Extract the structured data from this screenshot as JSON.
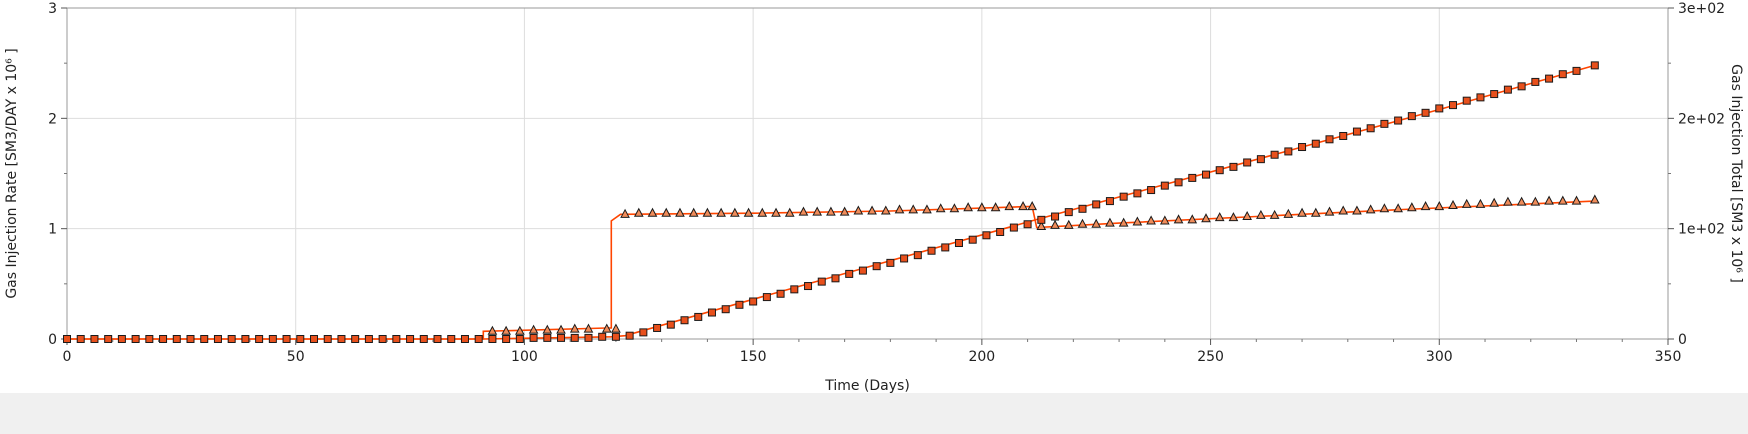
{
  "chart_data": {
    "type": "line",
    "title": "",
    "xlabel": "Time (Days)",
    "ylabel_left": "Gas Injection Rate [SM3/DAY x 10⁶ ]",
    "ylabel_right": "Gas Injection Total [SM3 x 10⁶ ]",
    "xlim": [
      0,
      350
    ],
    "ylim_left": [
      0,
      3
    ],
    "ylim_right": [
      0,
      300
    ],
    "x_ticks": [
      0,
      50,
      100,
      150,
      200,
      250,
      300,
      350
    ],
    "x_tick_labels": [
      "0",
      "50",
      "100",
      "150",
      "200",
      "250",
      "300",
      "350"
    ],
    "y_left_ticks": [
      0,
      1,
      2,
      3
    ],
    "y_left_tick_labels": [
      "0",
      "1",
      "2",
      "3"
    ],
    "y_right_ticks": [
      0,
      100,
      200,
      300
    ],
    "y_right_tick_labels": [
      "0",
      "1e+02",
      "2e+02",
      "3e+02"
    ],
    "grid": true,
    "colors": {
      "line": "#ff4500",
      "marker_square": "#e8501c",
      "marker_triangle": "#f08c5a",
      "marker_edge": "#1a1a1a",
      "grid": "#dddddd"
    },
    "series": [
      {
        "axis": "left",
        "marker": "triangle",
        "line": [
          [
            0,
            0
          ],
          [
            91,
            0
          ],
          [
            91,
            0.07
          ],
          [
            118,
            0.1
          ],
          [
            119,
            0.1
          ],
          [
            119,
            1.07
          ],
          [
            121,
            1.13
          ],
          [
            150,
            1.14
          ],
          [
            180,
            1.16
          ],
          [
            210,
            1.2
          ],
          [
            211,
            1.2
          ],
          [
            212,
            1.01
          ],
          [
            230,
            1.05
          ],
          [
            260,
            1.11
          ],
          [
            290,
            1.17
          ],
          [
            334,
            1.25
          ]
        ],
        "points": [
          [
            93,
            0.07
          ],
          [
            96,
            0.07
          ],
          [
            99,
            0.07
          ],
          [
            102,
            0.08
          ],
          [
            105,
            0.08
          ],
          [
            108,
            0.08
          ],
          [
            111,
            0.09
          ],
          [
            114,
            0.09
          ],
          [
            118,
            0.09
          ],
          [
            120,
            0.09
          ],
          [
            122,
            1.13
          ],
          [
            125,
            1.14
          ],
          [
            128,
            1.14
          ],
          [
            131,
            1.14
          ],
          [
            134,
            1.14
          ],
          [
            137,
            1.14
          ],
          [
            140,
            1.14
          ],
          [
            143,
            1.14
          ],
          [
            146,
            1.14
          ],
          [
            149,
            1.14
          ],
          [
            152,
            1.14
          ],
          [
            155,
            1.14
          ],
          [
            158,
            1.14
          ],
          [
            161,
            1.15
          ],
          [
            164,
            1.15
          ],
          [
            167,
            1.15
          ],
          [
            170,
            1.15
          ],
          [
            173,
            1.16
          ],
          [
            176,
            1.16
          ],
          [
            179,
            1.16
          ],
          [
            182,
            1.17
          ],
          [
            185,
            1.17
          ],
          [
            188,
            1.17
          ],
          [
            191,
            1.18
          ],
          [
            194,
            1.18
          ],
          [
            197,
            1.19
          ],
          [
            200,
            1.19
          ],
          [
            203,
            1.19
          ],
          [
            206,
            1.2
          ],
          [
            209,
            1.2
          ],
          [
            211,
            1.2
          ],
          [
            213,
            1.02
          ],
          [
            216,
            1.03
          ],
          [
            219,
            1.03
          ],
          [
            222,
            1.04
          ],
          [
            225,
            1.04
          ],
          [
            228,
            1.05
          ],
          [
            231,
            1.05
          ],
          [
            234,
            1.06
          ],
          [
            237,
            1.07
          ],
          [
            240,
            1.07
          ],
          [
            243,
            1.08
          ],
          [
            246,
            1.08
          ],
          [
            249,
            1.09
          ],
          [
            252,
            1.1
          ],
          [
            255,
            1.1
          ],
          [
            258,
            1.11
          ],
          [
            261,
            1.12
          ],
          [
            264,
            1.12
          ],
          [
            267,
            1.13
          ],
          [
            270,
            1.14
          ],
          [
            273,
            1.14
          ],
          [
            276,
            1.15
          ],
          [
            279,
            1.16
          ],
          [
            282,
            1.16
          ],
          [
            285,
            1.17
          ],
          [
            288,
            1.18
          ],
          [
            291,
            1.18
          ],
          [
            294,
            1.19
          ],
          [
            297,
            1.2
          ],
          [
            300,
            1.2
          ],
          [
            303,
            1.21
          ],
          [
            306,
            1.22
          ],
          [
            309,
            1.22
          ],
          [
            312,
            1.23
          ],
          [
            315,
            1.24
          ],
          [
            318,
            1.24
          ],
          [
            321,
            1.24
          ],
          [
            324,
            1.25
          ],
          [
            327,
            1.25
          ],
          [
            330,
            1.25
          ],
          [
            334,
            1.26
          ]
        ]
      },
      {
        "axis": "right",
        "marker": "square",
        "line": [
          [
            0,
            0
          ],
          [
            91,
            0
          ],
          [
            119,
            2
          ],
          [
            122,
            3
          ],
          [
            150,
            36
          ],
          [
            180,
            71
          ],
          [
            210,
            106
          ],
          [
            240,
            140
          ],
          [
            270,
            174
          ],
          [
            300,
            208
          ],
          [
            334,
            248
          ]
        ],
        "points": [
          [
            0,
            0
          ],
          [
            3,
            0
          ],
          [
            6,
            0
          ],
          [
            9,
            0
          ],
          [
            12,
            0
          ],
          [
            15,
            0
          ],
          [
            18,
            0
          ],
          [
            21,
            0
          ],
          [
            24,
            0
          ],
          [
            27,
            0
          ],
          [
            30,
            0
          ],
          [
            33,
            0
          ],
          [
            36,
            0
          ],
          [
            39,
            0
          ],
          [
            42,
            0
          ],
          [
            45,
            0
          ],
          [
            48,
            0
          ],
          [
            51,
            0
          ],
          [
            54,
            0
          ],
          [
            57,
            0
          ],
          [
            60,
            0
          ],
          [
            63,
            0
          ],
          [
            66,
            0
          ],
          [
            69,
            0
          ],
          [
            72,
            0
          ],
          [
            75,
            0
          ],
          [
            78,
            0
          ],
          [
            81,
            0
          ],
          [
            84,
            0
          ],
          [
            87,
            0
          ],
          [
            90,
            0
          ],
          [
            93,
            0
          ],
          [
            96,
            0
          ],
          [
            99,
            0
          ],
          [
            102,
            1
          ],
          [
            105,
            1
          ],
          [
            108,
            1
          ],
          [
            111,
            1
          ],
          [
            114,
            1
          ],
          [
            117,
            2
          ],
          [
            120,
            2
          ],
          [
            123,
            3
          ],
          [
            126,
            6
          ],
          [
            129,
            10
          ],
          [
            132,
            13
          ],
          [
            135,
            17
          ],
          [
            138,
            20
          ],
          [
            141,
            24
          ],
          [
            144,
            27
          ],
          [
            147,
            31
          ],
          [
            150,
            34
          ],
          [
            153,
            38
          ],
          [
            156,
            41
          ],
          [
            159,
            45
          ],
          [
            162,
            48
          ],
          [
            165,
            52
          ],
          [
            168,
            55
          ],
          [
            171,
            59
          ],
          [
            174,
            62
          ],
          [
            177,
            66
          ],
          [
            180,
            69
          ],
          [
            183,
            73
          ],
          [
            186,
            76
          ],
          [
            189,
            80
          ],
          [
            192,
            83
          ],
          [
            195,
            87
          ],
          [
            198,
            90
          ],
          [
            201,
            94
          ],
          [
            204,
            97
          ],
          [
            207,
            101
          ],
          [
            210,
            104
          ],
          [
            213,
            108
          ],
          [
            216,
            111
          ],
          [
            219,
            115
          ],
          [
            222,
            118
          ],
          [
            225,
            122
          ],
          [
            228,
            125
          ],
          [
            231,
            129
          ],
          [
            234,
            132
          ],
          [
            237,
            135
          ],
          [
            240,
            139
          ],
          [
            243,
            142
          ],
          [
            246,
            146
          ],
          [
            249,
            149
          ],
          [
            252,
            153
          ],
          [
            255,
            156
          ],
          [
            258,
            160
          ],
          [
            261,
            163
          ],
          [
            264,
            167
          ],
          [
            267,
            170
          ],
          [
            270,
            174
          ],
          [
            273,
            177
          ],
          [
            276,
            181
          ],
          [
            279,
            184
          ],
          [
            282,
            188
          ],
          [
            285,
            191
          ],
          [
            288,
            195
          ],
          [
            291,
            198
          ],
          [
            294,
            202
          ],
          [
            297,
            205
          ],
          [
            300,
            209
          ],
          [
            303,
            212
          ],
          [
            306,
            216
          ],
          [
            309,
            219
          ],
          [
            312,
            222
          ],
          [
            315,
            226
          ],
          [
            318,
            229
          ],
          [
            321,
            233
          ],
          [
            324,
            236
          ],
          [
            327,
            240
          ],
          [
            330,
            243
          ],
          [
            334,
            248
          ]
        ]
      }
    ]
  }
}
